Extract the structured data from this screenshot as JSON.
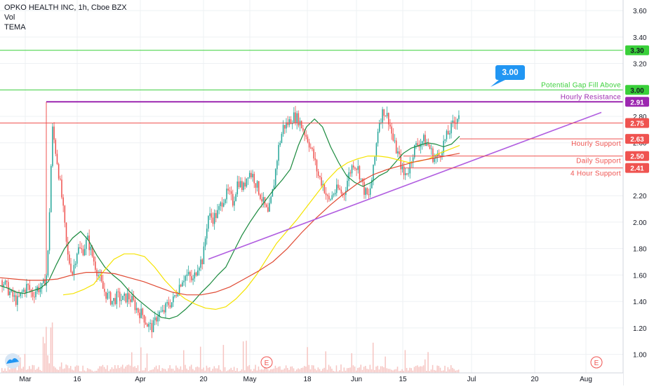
{
  "header": {
    "symbol_line": "OPKO HEALTH INC, 1h, Cboe BZX",
    "indicator_1": "Vol",
    "indicator_2": "TEMA"
  },
  "chart_data": {
    "type": "candlestick",
    "symbol": "OPKO HEALTH INC",
    "interval": "1h",
    "exchange": "Cboe BZX",
    "ylim": [
      0.86,
      3.68
    ],
    "y_ticks": [
      1.0,
      1.2,
      1.4,
      1.6,
      1.8,
      2.0,
      2.2,
      2.4,
      2.6,
      2.8,
      3.0,
      3.2,
      3.4,
      3.6
    ],
    "x_ticks": [
      "Mar",
      "16",
      "Apr",
      "20",
      "May",
      "18",
      "Jun",
      "15",
      "Jul",
      "20",
      "Aug"
    ],
    "price_path": [
      1.56,
      1.5,
      1.44,
      1.4,
      1.47,
      1.52,
      1.45,
      1.5,
      1.5,
      1.62,
      2.71,
      2.45,
      2.15,
      1.75,
      1.62,
      1.8,
      1.78,
      1.87,
      1.74,
      1.62,
      1.5,
      1.44,
      1.4,
      1.44,
      1.41,
      1.44,
      1.4,
      1.33,
      1.3,
      1.22,
      1.2,
      1.31,
      1.31,
      1.38,
      1.4,
      1.5,
      1.58,
      1.6,
      1.55,
      1.68,
      1.72,
      2.05,
      2.03,
      2.07,
      2.18,
      2.22,
      2.15,
      2.32,
      2.25,
      2.38,
      2.35,
      2.25,
      2.15,
      2.05,
      2.25,
      2.55,
      2.72,
      2.75,
      2.8,
      2.78,
      2.7,
      2.62,
      2.5,
      2.35,
      2.28,
      2.15,
      2.22,
      2.25,
      2.2,
      2.35,
      2.45,
      2.4,
      2.25,
      2.18,
      2.4,
      2.75,
      2.85,
      2.78,
      2.6,
      2.5,
      2.35,
      2.4,
      2.55,
      2.6,
      2.62,
      2.58,
      2.48,
      2.5,
      2.6,
      2.68,
      2.75,
      2.82
    ],
    "series": [
      {
        "name": "TEMA",
        "color": "#1b8a3e",
        "values": [
          1.52,
          1.5,
          1.47,
          1.46,
          1.48,
          1.5,
          1.55,
          1.68,
          1.8,
          1.88,
          1.93,
          1.86,
          1.75,
          1.66,
          1.6,
          1.55,
          1.48,
          1.42,
          1.37,
          1.32,
          1.28,
          1.27,
          1.29,
          1.34,
          1.4,
          1.47,
          1.53,
          1.6,
          1.66,
          1.78,
          1.9,
          2.0,
          2.09,
          2.17,
          2.25,
          2.32,
          2.4,
          2.58,
          2.72,
          2.78,
          2.72,
          2.57,
          2.45,
          2.35,
          2.3,
          2.27,
          2.3,
          2.35,
          2.38,
          2.45,
          2.52,
          2.56,
          2.58,
          2.6,
          2.59,
          2.57,
          2.59,
          2.65
        ]
      },
      {
        "name": "",
        "color": "#f5e300",
        "values": [
          1.45,
          1.46,
          1.49,
          1.53,
          1.63,
          1.72,
          1.76,
          1.76,
          1.74,
          1.66,
          1.56,
          1.48,
          1.42,
          1.38,
          1.35,
          1.34,
          1.36,
          1.42,
          1.5,
          1.6,
          1.72,
          1.84,
          1.93,
          2.02,
          2.12,
          2.22,
          2.32,
          2.4,
          2.45,
          2.48,
          2.5,
          2.5,
          2.49,
          2.47,
          2.45,
          2.46,
          2.48,
          2.52,
          2.55,
          2.58
        ]
      },
      {
        "name": "",
        "color": "#e04a33",
        "values": [
          1.58,
          1.57,
          1.56,
          1.56,
          1.57,
          1.6,
          1.62,
          1.62,
          1.61,
          1.58,
          1.55,
          1.51,
          1.47,
          1.45,
          1.45,
          1.47,
          1.51,
          1.57,
          1.63,
          1.7,
          1.8,
          1.92,
          2.03,
          2.13,
          2.22,
          2.3,
          2.36,
          2.4,
          2.43,
          2.46,
          2.48,
          2.5,
          2.52
        ]
      }
    ],
    "trendline": {
      "color": "#b15ee0",
      "from": [
        1.72
      ],
      "to": [
        2.83
      ]
    },
    "levels": [
      {
        "value": 3.3,
        "label": "",
        "tag": "3.30",
        "color": "#3ad03a"
      },
      {
        "value": 3.0,
        "label": "Potential Gap Fill Above",
        "tag": "3.00",
        "color": "#3ad03a"
      },
      {
        "value": 2.91,
        "label": "Hourly Resistance",
        "tag": "2.91",
        "color": "#9c27b0"
      },
      {
        "value": 2.75,
        "label": "",
        "tag": "2.75",
        "color": "#ef5350"
      },
      {
        "value": 2.63,
        "label": "Hourly Support",
        "tag": "2.63",
        "color": "#ef5350"
      },
      {
        "value": 2.5,
        "label": "Daily Support",
        "tag": "2.50",
        "color": "#ef5350"
      },
      {
        "value": 2.41,
        "label": "4 Hour Support",
        "tag": "2.41",
        "color": "#ef5350"
      }
    ],
    "callout": {
      "text": "3.00",
      "color": "#2196f3"
    },
    "earnings_marker": "E",
    "volume_color": "#f6c5c2",
    "grid": true
  }
}
